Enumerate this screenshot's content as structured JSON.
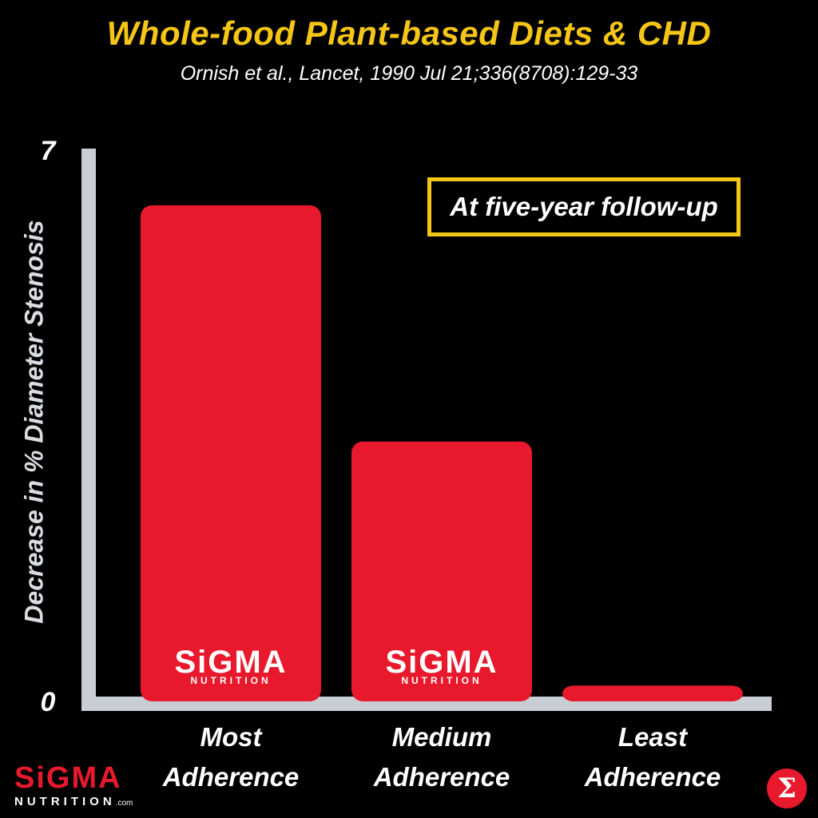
{
  "chart_data": {
    "type": "bar",
    "title": "Whole-food Plant-based Diets & CHD",
    "subtitle": "Ornish et al., Lancet, 1990 Jul 21;336(8708):129-33",
    "ylabel": "Decrease in % Diameter Stenosis",
    "xlabel": "",
    "ylim": [
      0,
      7
    ],
    "yticks": [
      "0",
      "7"
    ],
    "categories": [
      [
        "Most",
        "Adherence"
      ],
      [
        "Medium",
        "Adherence"
      ],
      [
        "Least",
        "Adherence"
      ]
    ],
    "values": [
      6.3,
      3.3,
      0.2
    ],
    "annotation": "At five-year follow-up",
    "bar_color": "#e8192c",
    "axis_color": "#c9ced4",
    "grid": false
  },
  "watermark": {
    "word": "SiGMA",
    "sub": "NUTRITION"
  },
  "brand": {
    "word": "SiGMA",
    "sub": "NUTRITION",
    "suffix": ".com",
    "badge": "Σ"
  },
  "colors": {
    "title": "#f5c518",
    "accent": "#e8192c",
    "background": "#000000"
  }
}
